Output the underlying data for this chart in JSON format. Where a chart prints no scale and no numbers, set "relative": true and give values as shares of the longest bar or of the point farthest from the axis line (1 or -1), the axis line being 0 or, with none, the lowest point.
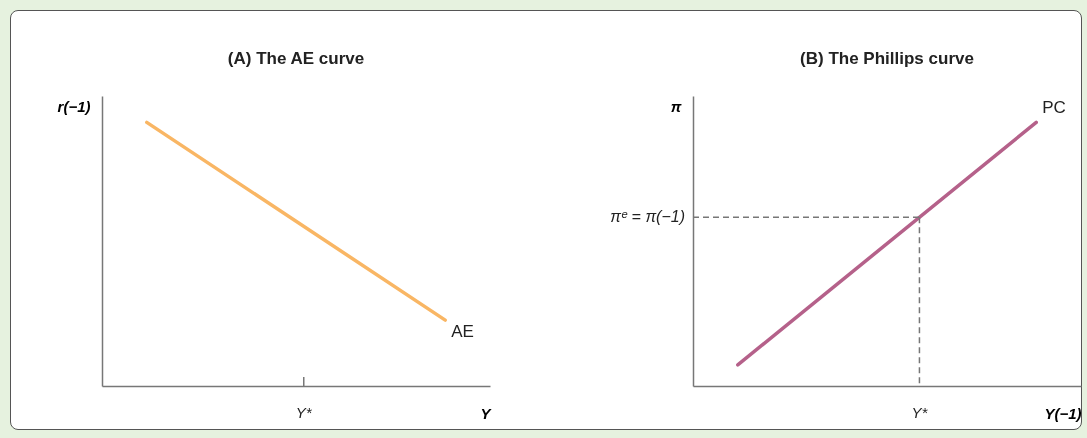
{
  "chart_data": [
    {
      "type": "line",
      "title": "(A) The AE curve",
      "xlabel": "Y",
      "ylabel": "r(−1)",
      "relative": true,
      "categories": [
        null,
        null
      ],
      "annotations": [
        "Y*"
      ],
      "series": [
        {
          "name": "AE",
          "color": "#f9b664",
          "values": [
            1,
            0.25
          ]
        }
      ]
    },
    {
      "type": "line",
      "title": "(B) The Phillips curve",
      "xlabel": "Y(−1)",
      "ylabel": "π",
      "relative": true,
      "categories": [
        null,
        null
      ],
      "annotations": [
        "Y*"
      ],
      "ref_lines": [
        {
          "axis": "y",
          "value": 0.64,
          "label": "πᵉ = π(−1)",
          "color": "#777777",
          "line_style": "dashed"
        }
      ],
      "series": [
        {
          "name": "PC",
          "color": "#b5618a",
          "values": [
            0.08,
            1
          ]
        }
      ]
    }
  ]
}
